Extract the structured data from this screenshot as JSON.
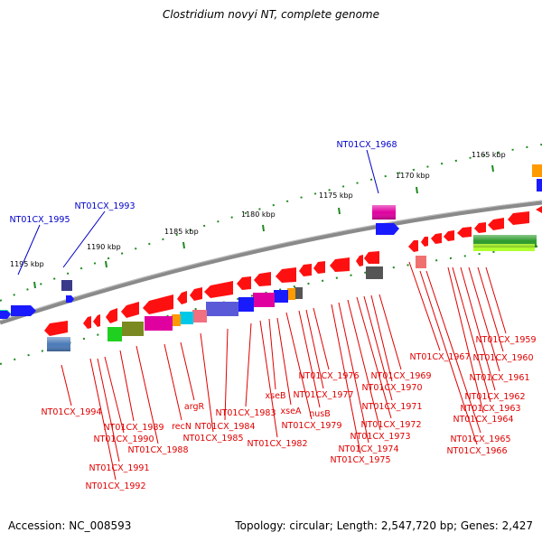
{
  "title": "Clostridium novyi NT, complete genome",
  "footer": {
    "accession": "Accession: NC_008593",
    "summary": "Topology: circular; Length: 2,547,720 bp; Genes: 2,427"
  },
  "scale_labels": [
    "1165 kbp",
    "1170 kbp",
    "1175 kbp",
    "1180 kbp",
    "1185 kbp",
    "1190 kbp",
    "1195 kbp"
  ],
  "colors": {
    "backbone": "#808080",
    "tick": "#1e8a1e",
    "leader_red": "#e00000",
    "leader_blue": "#0000c8"
  },
  "outer_labels": [
    "NT01CX_1968",
    "NT01CX_1993",
    "NT01CX_1995"
  ],
  "inner_labels": [
    "NT01CX_1959",
    "NT01CX_1960",
    "NT01CX_1961",
    "NT01CX_1962",
    "NT01CX_1963",
    "NT01CX_1964",
    "NT01CX_1965",
    "NT01CX_1966",
    "NT01CX_1967",
    "NT01CX_1969",
    "NT01CX_1970",
    "NT01CX_1971",
    "NT01CX_1972",
    "NT01CX_1973",
    "NT01CX_1974",
    "NT01CX_1975",
    "NT01CX_1976",
    "NT01CX_1977",
    "nusB",
    "NT01CX_1979",
    "xseA",
    "xseB",
    "NT01CX_1982",
    "NT01CX_1983",
    "NT01CX_1984",
    "NT01CX_1985",
    "argR",
    "recN",
    "NT01CX_1988",
    "NT01CX_1989",
    "NT01CX_1990",
    "NT01CX_1991",
    "NT01CX_1992",
    "NT01CX_1994"
  ]
}
